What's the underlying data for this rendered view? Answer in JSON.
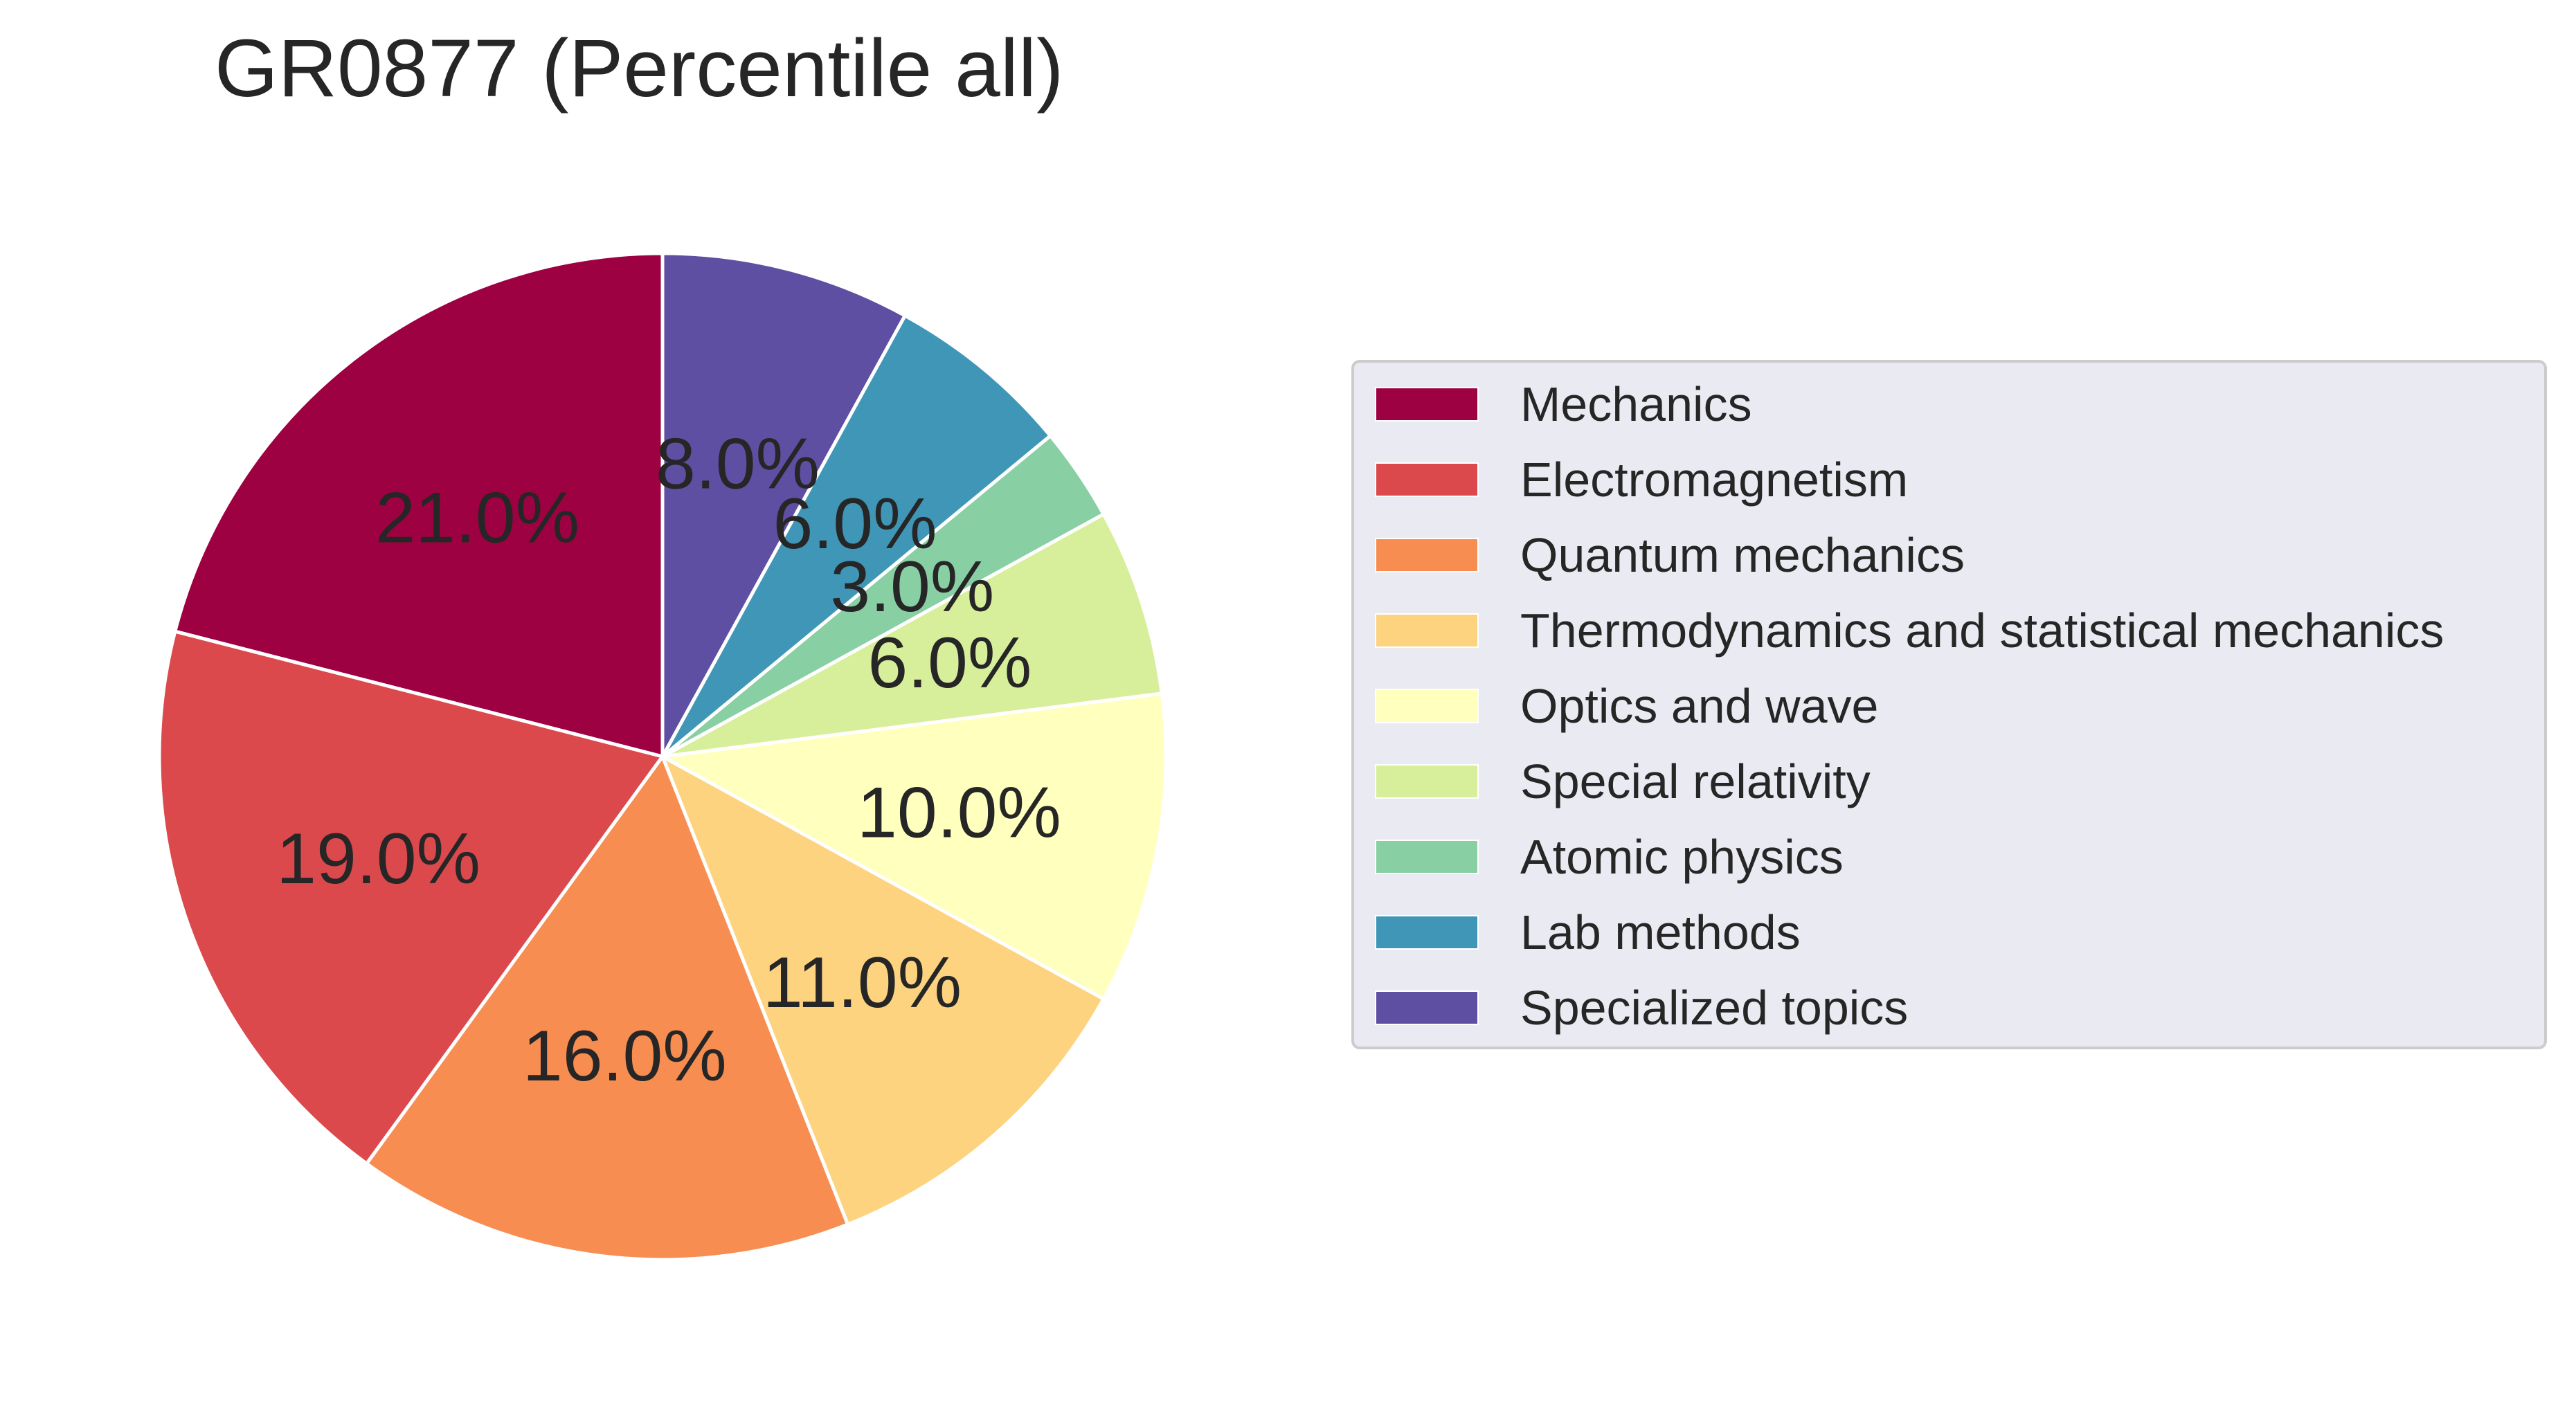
{
  "chart_data": {
    "type": "pie",
    "title": "GR0877 (Percentile all)",
    "start_angle_deg": 90,
    "direction": "counterclockwise",
    "slices": [
      {
        "label": "Mechanics",
        "value": 21.0,
        "pct_text": "21.0%",
        "color": "#9e0142"
      },
      {
        "label": "Electromagnetism",
        "value": 19.0,
        "pct_text": "19.0%",
        "color": "#dc494c"
      },
      {
        "label": "Quantum mechanics",
        "value": 16.0,
        "pct_text": "16.0%",
        "color": "#f88d51"
      },
      {
        "label": "Thermodynamics and statistical mechanics",
        "value": 11.0,
        "pct_text": "11.0%",
        "color": "#fdd380"
      },
      {
        "label": "Optics and wave",
        "value": 10.0,
        "pct_text": "10.0%",
        "color": "#ffffbe"
      },
      {
        "label": "Special relativity",
        "value": 6.0,
        "pct_text": "6.0%",
        "color": "#d7ef9b"
      },
      {
        "label": "Atomic physics",
        "value": 3.0,
        "pct_text": "3.0%",
        "color": "#88cfa4"
      },
      {
        "label": "Lab methods",
        "value": 6.0,
        "pct_text": "6.0%",
        "color": "#3f96b7"
      },
      {
        "label": "Specialized topics",
        "value": 8.0,
        "pct_text": "8.0%",
        "color": "#5e4fa2"
      }
    ],
    "legend": {
      "position": "right",
      "background": "#eaeaf2"
    }
  }
}
